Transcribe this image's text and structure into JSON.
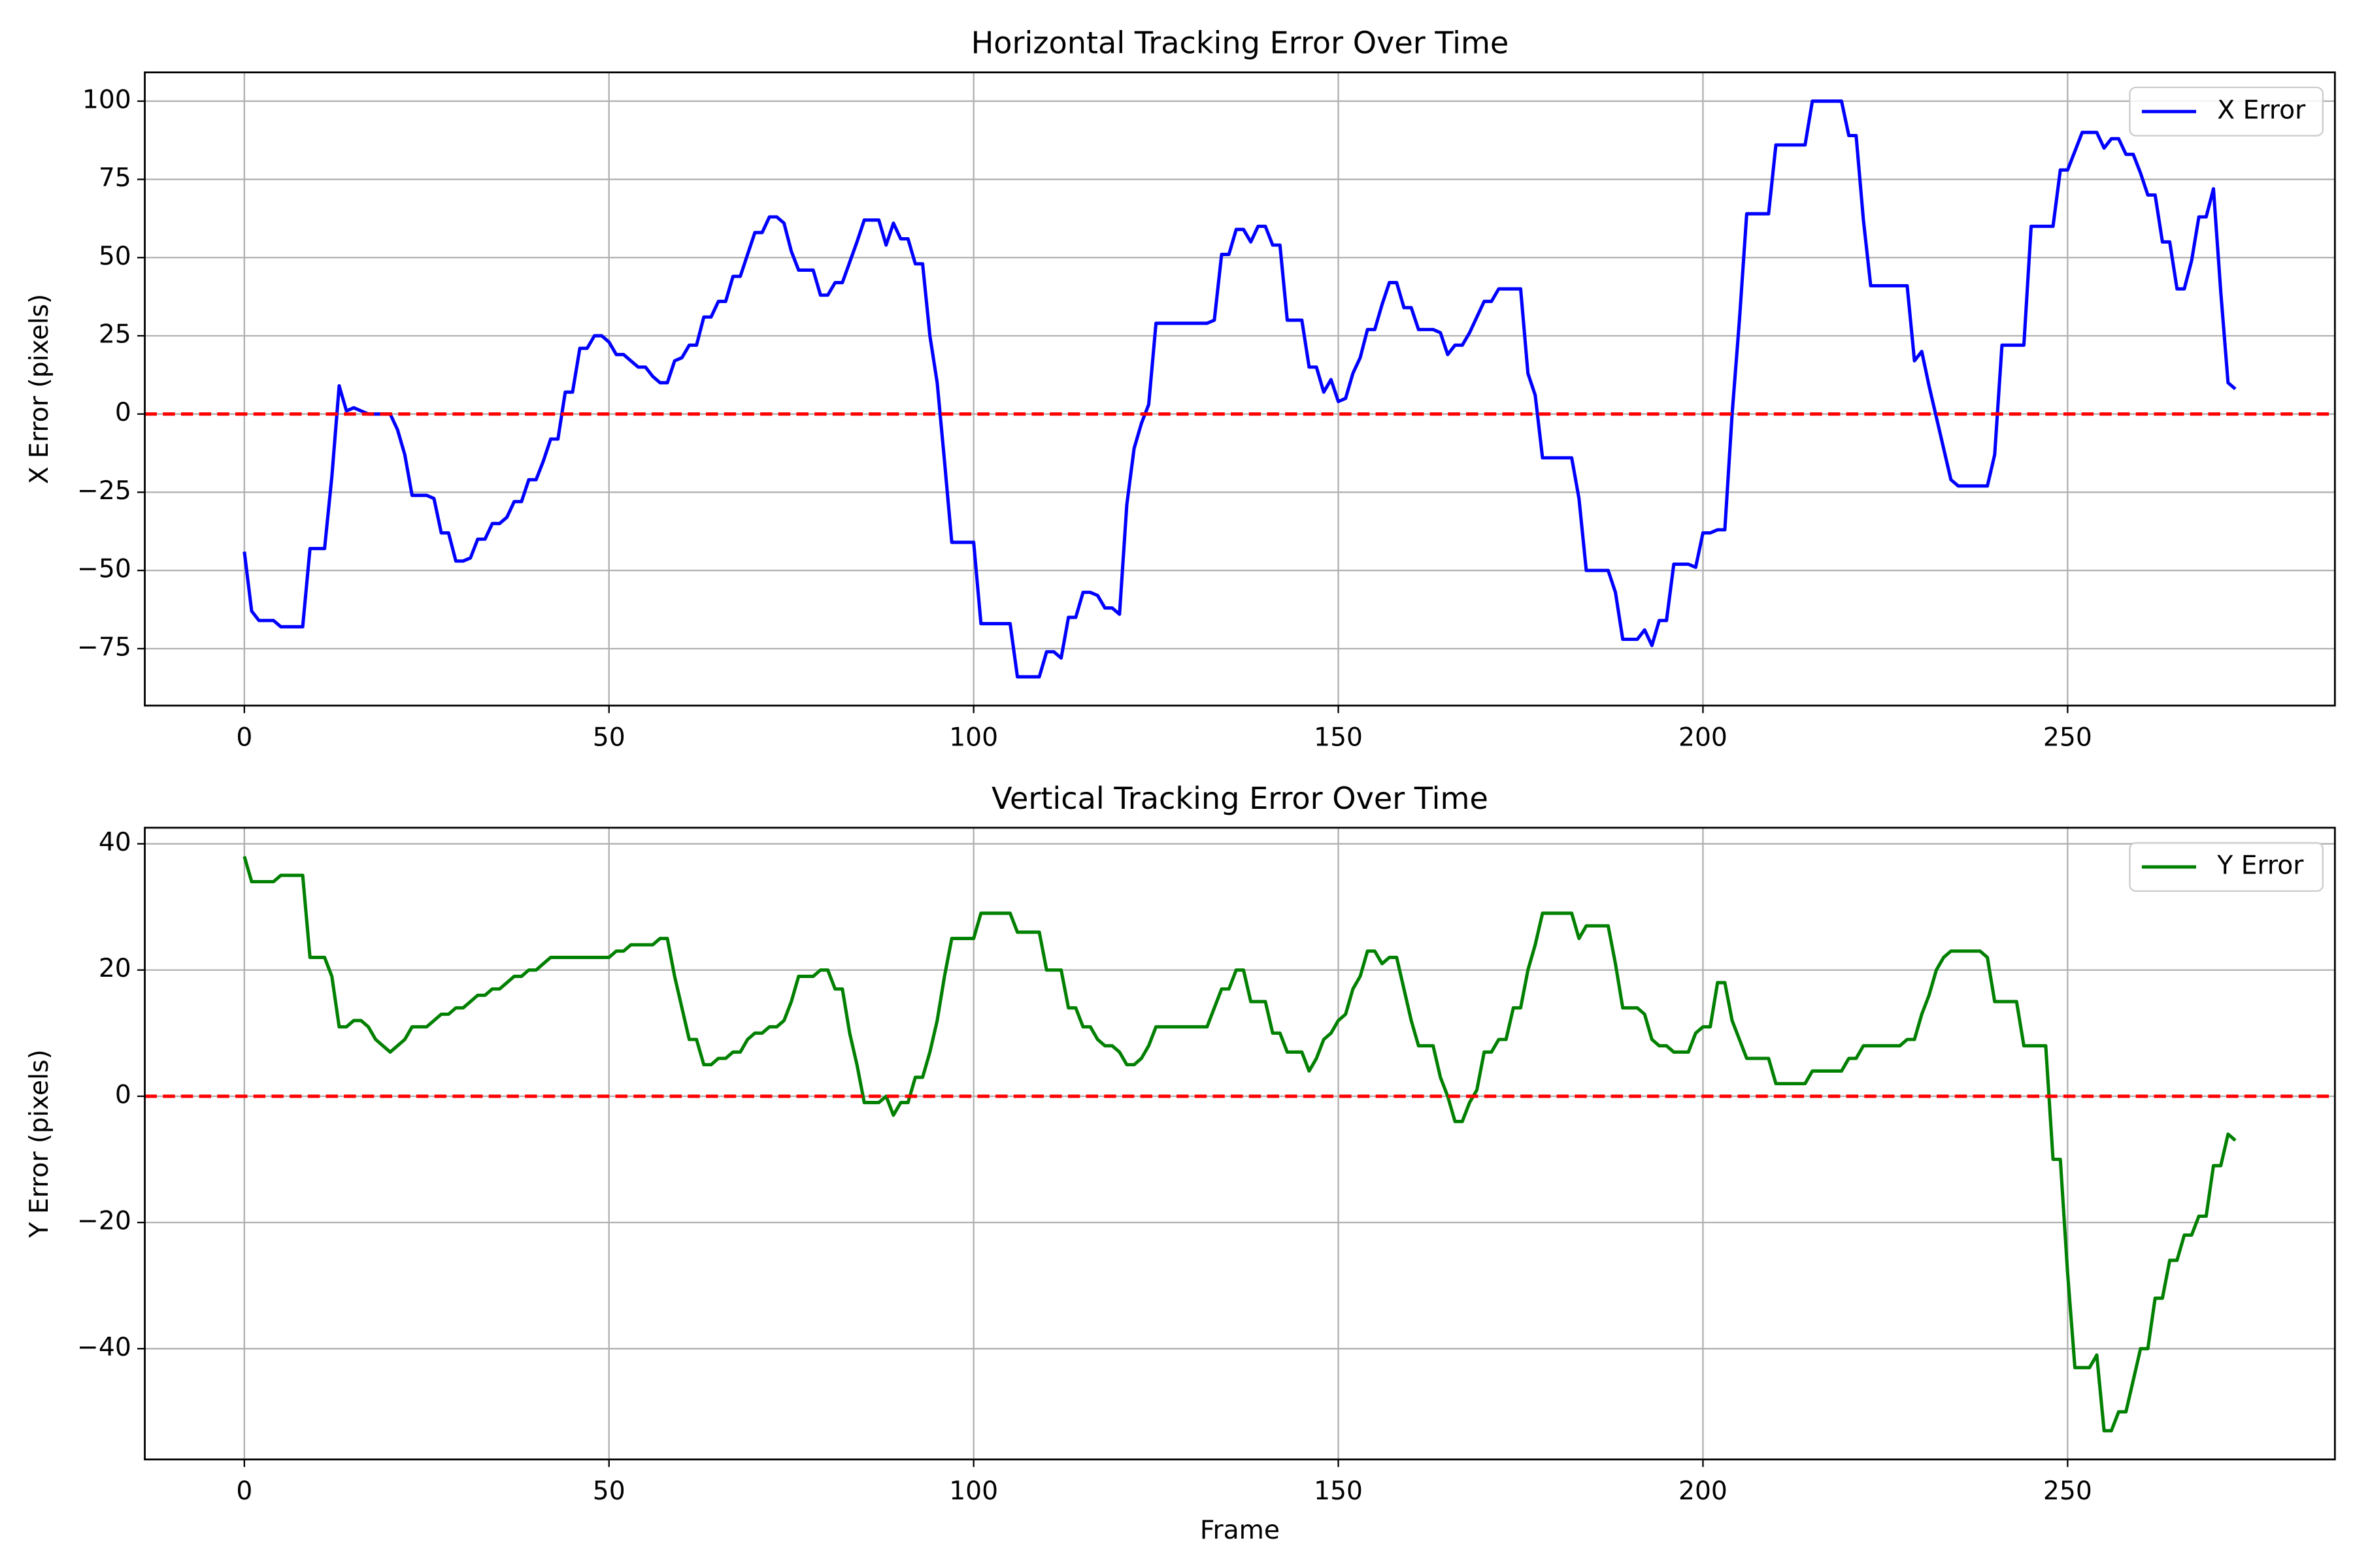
{
  "chart_data": [
    {
      "type": "line",
      "title": "Horizontal Tracking Error Over Time",
      "y_label": "X Error (pixels)",
      "x": [
        0,
        1,
        2,
        4,
        5,
        8,
        9,
        11,
        12,
        13,
        14,
        15,
        17,
        20,
        21,
        22,
        23,
        25,
        26,
        27,
        28,
        29,
        30,
        31,
        32,
        33,
        34,
        35,
        36,
        37,
        38,
        39,
        40,
        41,
        42,
        43,
        44,
        45,
        46,
        47,
        48,
        49,
        50,
        51,
        52,
        53,
        54,
        55,
        56,
        57,
        58,
        59,
        60,
        61,
        62,
        63,
        64,
        65,
        66,
        67,
        68,
        69,
        70,
        71,
        72,
        73,
        74,
        75,
        76,
        78,
        79,
        80,
        81,
        82,
        84,
        85,
        87,
        88,
        89,
        90,
        91,
        92,
        93,
        94,
        95,
        96,
        97,
        100,
        101,
        105,
        106,
        109,
        110,
        111,
        112,
        113,
        114,
        115,
        116,
        117,
        118,
        119,
        120,
        121,
        122,
        123,
        124,
        125,
        132,
        133,
        134,
        135,
        136,
        137,
        138,
        139,
        140,
        141,
        142,
        143,
        145,
        146,
        147,
        148,
        149,
        150,
        151,
        152,
        153,
        154,
        155,
        156,
        157,
        158,
        159,
        160,
        161,
        163,
        164,
        165,
        166,
        167,
        168,
        169,
        170,
        171,
        172,
        175,
        176,
        177,
        178,
        182,
        183,
        184,
        187,
        188,
        189,
        191,
        192,
        193,
        194,
        195,
        196,
        198,
        199,
        200,
        201,
        202,
        203,
        204,
        205,
        206,
        209,
        210,
        214,
        215,
        219,
        220,
        221,
        222,
        223,
        228,
        229,
        230,
        231,
        232,
        233,
        234,
        235,
        239,
        240,
        241,
        244,
        245,
        248,
        249,
        250,
        251,
        252,
        254,
        255,
        256,
        257,
        258,
        259,
        260,
        261,
        262,
        263,
        264,
        265,
        266,
        267,
        268,
        269,
        270,
        271,
        272,
        273
      ],
      "series": [
        {
          "name": "X Error",
          "color": "#0000ff",
          "values": [
            -44,
            -63,
            -66,
            -66,
            -68,
            -68,
            -43,
            -43,
            -20,
            9,
            1,
            2,
            0,
            0,
            -5,
            -13,
            -26,
            -26,
            -27,
            -38,
            -38,
            -47,
            -47,
            -46,
            -40,
            -40,
            -35,
            -35,
            -33,
            -28,
            -28,
            -21,
            -21,
            -15,
            -8,
            -8,
            7,
            7,
            21,
            21,
            25,
            25,
            23,
            19,
            19,
            17,
            15,
            15,
            12,
            10,
            10,
            17,
            18,
            22,
            22,
            31,
            31,
            36,
            36,
            44,
            44,
            51,
            58,
            58,
            63,
            63,
            61,
            52,
            46,
            46,
            38,
            38,
            42,
            42,
            55,
            62,
            62,
            54,
            61,
            56,
            56,
            48,
            48,
            25,
            10,
            -15,
            -41,
            -41,
            -67,
            -67,
            -84,
            -84,
            -76,
            -76,
            -78,
            -65,
            -65,
            -57,
            -57,
            -58,
            -62,
            -62,
            -64,
            -29,
            -11,
            -3,
            3,
            29,
            29,
            30,
            51,
            51,
            59,
            59,
            55,
            60,
            60,
            54,
            54,
            30,
            30,
            15,
            15,
            7,
            11,
            4,
            5,
            13,
            18,
            27,
            27,
            35,
            42,
            42,
            34,
            34,
            27,
            27,
            26,
            19,
            22,
            22,
            26,
            31,
            36,
            36,
            40,
            40,
            13,
            6,
            -14,
            -14,
            -27,
            -50,
            -50,
            -57,
            -72,
            -72,
            -69,
            -74,
            -66,
            -66,
            -48,
            -48,
            -49,
            -38,
            -38,
            -37,
            -37,
            0,
            30,
            64,
            64,
            86,
            86,
            100,
            100,
            89,
            89,
            62,
            41,
            41,
            17,
            20,
            9,
            -1,
            -11,
            -21,
            -23,
            -23,
            -13,
            22,
            22,
            60,
            60,
            78,
            78,
            84,
            90,
            90,
            85,
            88,
            88,
            83,
            83,
            77,
            70,
            70,
            55,
            55,
            40,
            40,
            49,
            63,
            63,
            72,
            39,
            10,
            8
          ]
        }
      ],
      "reference_line": {
        "value": 0,
        "color": "#ff0000"
      },
      "xlim": [
        -13.65,
        286.65
      ],
      "xticks": [
        0,
        50,
        100,
        150,
        200,
        250
      ],
      "ylim": [
        -93.2,
        109.2
      ],
      "yticks": [
        {
          "value": -75,
          "label": "−75"
        },
        {
          "value": -50,
          "label": "−50"
        },
        {
          "value": -25,
          "label": "−25"
        },
        0,
        25,
        50,
        75,
        100
      ],
      "grid": true,
      "legend": "upper right"
    },
    {
      "type": "line",
      "title": "Vertical Tracking Error Over Time",
      "x_label": "Frame",
      "y_label": "Y Error (pixels)",
      "x": [
        0,
        1,
        4,
        5,
        8,
        9,
        11,
        12,
        13,
        14,
        15,
        16,
        17,
        18,
        19,
        20,
        21,
        22,
        23,
        25,
        26,
        27,
        28,
        29,
        30,
        31,
        32,
        33,
        34,
        35,
        36,
        37,
        38,
        39,
        40,
        41,
        42,
        50,
        51,
        52,
        53,
        56,
        57,
        58,
        59,
        60,
        61,
        62,
        63,
        64,
        65,
        66,
        67,
        68,
        69,
        70,
        71,
        72,
        73,
        74,
        75,
        76,
        78,
        79,
        80,
        81,
        82,
        83,
        84,
        85,
        87,
        88,
        89,
        90,
        91,
        92,
        93,
        94,
        95,
        96,
        97,
        100,
        101,
        105,
        106,
        109,
        110,
        112,
        113,
        114,
        115,
        116,
        117,
        118,
        119,
        120,
        121,
        122,
        123,
        124,
        125,
        132,
        133,
        134,
        135,
        136,
        137,
        138,
        140,
        141,
        142,
        143,
        145,
        146,
        147,
        148,
        149,
        150,
        151,
        152,
        153,
        154,
        155,
        156,
        157,
        158,
        159,
        160,
        161,
        163,
        164,
        165,
        166,
        167,
        168,
        169,
        170,
        171,
        172,
        173,
        174,
        175,
        176,
        177,
        178,
        182,
        183,
        184,
        187,
        188,
        189,
        191,
        192,
        193,
        194,
        195,
        196,
        198,
        199,
        200,
        201,
        202,
        203,
        204,
        205,
        206,
        209,
        210,
        214,
        215,
        219,
        220,
        221,
        222,
        227,
        228,
        229,
        230,
        231,
        232,
        233,
        234,
        238,
        239,
        240,
        243,
        244,
        247,
        248,
        249,
        250,
        251,
        253,
        254,
        255,
        256,
        257,
        258,
        259,
        260,
        261,
        262,
        263,
        264,
        265,
        266,
        267,
        268,
        269,
        270,
        271,
        272,
        273
      ],
      "series": [
        {
          "name": "Y Error",
          "color": "#008000",
          "values": [
            38,
            34,
            34,
            35,
            35,
            22,
            22,
            19,
            11,
            11,
            12,
            12,
            11,
            9,
            8,
            7,
            8,
            9,
            11,
            11,
            12,
            13,
            13,
            14,
            14,
            15,
            16,
            16,
            17,
            17,
            18,
            19,
            19,
            20,
            20,
            21,
            22,
            22,
            23,
            23,
            24,
            24,
            25,
            25,
            19,
            14,
            9,
            9,
            5,
            5,
            6,
            6,
            7,
            7,
            9,
            10,
            10,
            11,
            11,
            12,
            15,
            19,
            19,
            20,
            20,
            17,
            17,
            10,
            5,
            -1,
            -1,
            0,
            -3,
            -1,
            -1,
            3,
            3,
            7,
            12,
            19,
            25,
            25,
            29,
            29,
            26,
            26,
            20,
            20,
            14,
            14,
            11,
            11,
            9,
            8,
            8,
            7,
            5,
            5,
            6,
            8,
            11,
            11,
            14,
            17,
            17,
            20,
            20,
            15,
            15,
            10,
            10,
            7,
            7,
            4,
            6,
            9,
            10,
            12,
            13,
            17,
            19,
            23,
            23,
            21,
            22,
            22,
            17,
            12,
            8,
            8,
            3,
            0,
            -4,
            -4,
            -1,
            1,
            7,
            7,
            9,
            9,
            14,
            14,
            20,
            24,
            29,
            29,
            25,
            27,
            27,
            21,
            14,
            14,
            13,
            9,
            8,
            8,
            7,
            7,
            10,
            11,
            11,
            18,
            18,
            12,
            9,
            6,
            6,
            2,
            2,
            4,
            4,
            6,
            6,
            8,
            8,
            9,
            9,
            13,
            16,
            20,
            22,
            23,
            23,
            22,
            15,
            15,
            8,
            8,
            -10,
            -10,
            -28,
            -43,
            -43,
            -41,
            -53,
            -53,
            -50,
            -50,
            -45,
            -40,
            -40,
            -32,
            -32,
            -26,
            -26,
            -22,
            -22,
            -19,
            -19,
            -11,
            -11,
            -6,
            -7
          ]
        }
      ],
      "reference_line": {
        "value": 0,
        "color": "#ff0000"
      },
      "xlim": [
        -13.65,
        286.65
      ],
      "xticks": [
        0,
        50,
        100,
        150,
        200,
        250
      ],
      "ylim": [
        -57.55,
        42.55
      ],
      "yticks": [
        {
          "value": -40,
          "label": "−40"
        },
        {
          "value": -20,
          "label": "−20"
        },
        0,
        20,
        40
      ],
      "grid": true,
      "legend": "upper right"
    }
  ]
}
